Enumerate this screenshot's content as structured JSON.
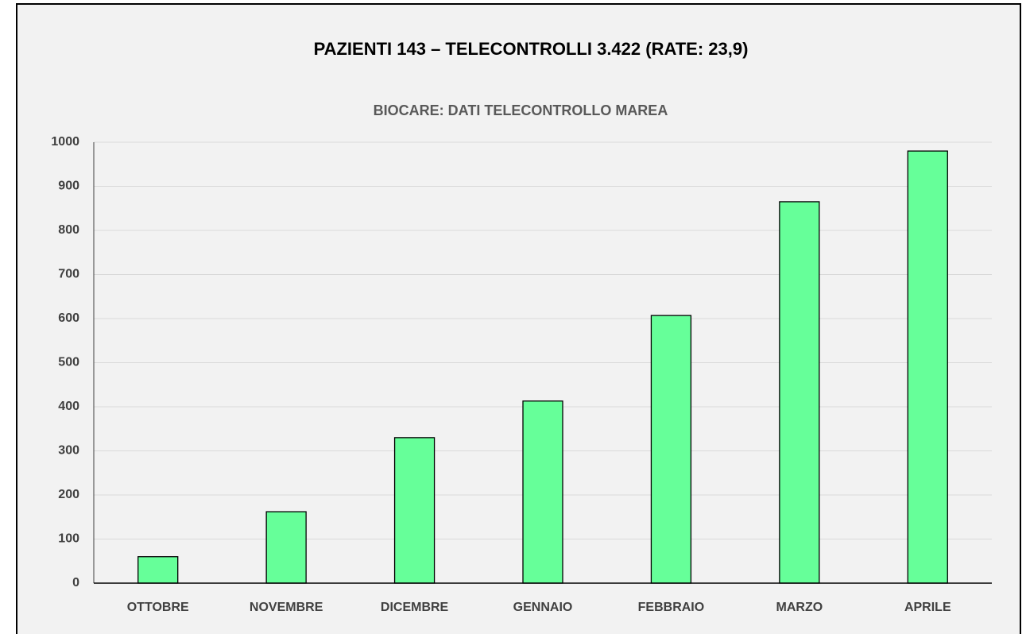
{
  "chart_data": {
    "type": "bar",
    "title": "PAZIENTI 143 – TELECONTROLLI 3.422 (RATE: 23,9)",
    "subtitle": "BIOCARE: DATI TELECONTROLLO MAREA",
    "categories": [
      "OTTOBRE",
      "NOVEMBRE",
      "DICEMBRE",
      "GENNAIO",
      "FEBBRAIO",
      "MARZO",
      "APRILE"
    ],
    "values": [
      60,
      162,
      330,
      413,
      607,
      865,
      980
    ],
    "color": "#66ff99",
    "ylim": [
      0,
      1000
    ],
    "yticks": [
      0,
      100,
      200,
      300,
      400,
      500,
      600,
      700,
      800,
      900,
      1000
    ],
    "grid": true
  }
}
